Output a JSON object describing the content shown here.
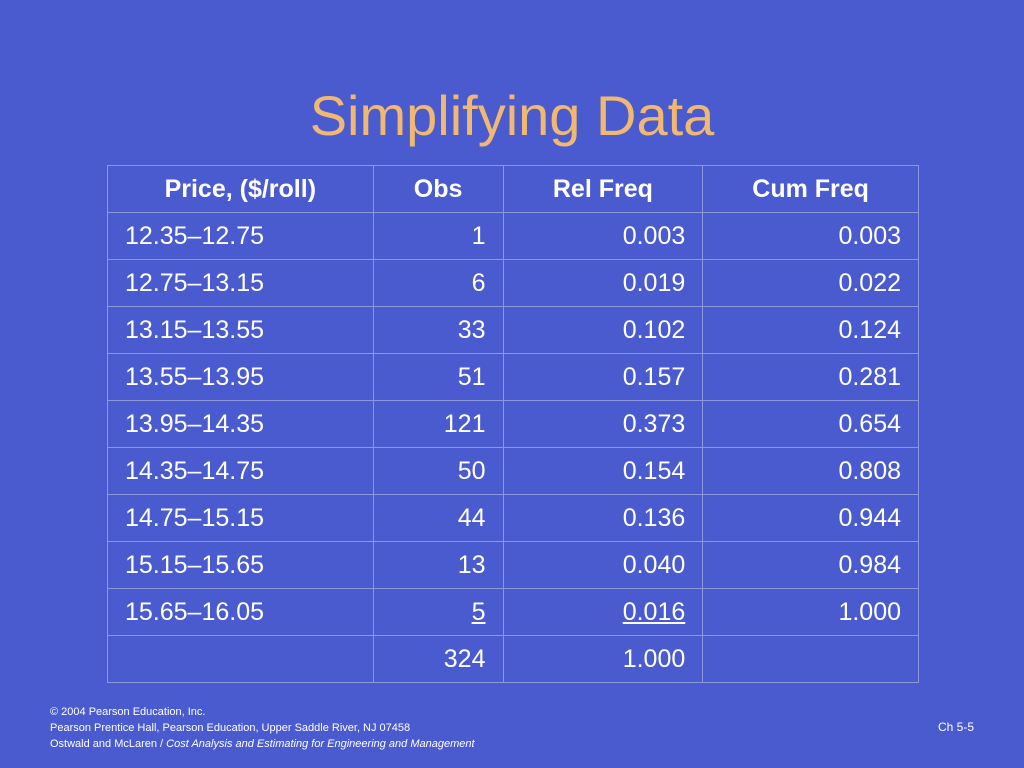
{
  "slide": {
    "title": "Simplifying Data",
    "table": {
      "headers": [
        "Price, ($/roll)",
        "Obs",
        "Rel Freq",
        "Cum Freq"
      ],
      "rows": [
        [
          "12.35–12.75",
          "1",
          "0.003",
          "0.003"
        ],
        [
          "12.75–13.15",
          "6",
          "0.019",
          "0.022"
        ],
        [
          "13.15–13.55",
          "33",
          "0.102",
          "0.124"
        ],
        [
          "13.55–13.95",
          "51",
          "0.157",
          "0.281"
        ],
        [
          "13.95–14.35",
          "121",
          "0.373",
          "0.654"
        ],
        [
          "14.35–14.75",
          "50",
          "0.154",
          "0.808"
        ],
        [
          "14.75–15.15",
          "44",
          "0.136",
          "0.944"
        ],
        [
          "15.15–15.65",
          "13",
          "0.040",
          "0.984"
        ],
        [
          "15.65–16.05",
          "5",
          "0.016",
          "1.000"
        ],
        [
          "",
          "324",
          "1.000",
          ""
        ]
      ]
    },
    "footer": {
      "copyright": "© 2004 Pearson Education, Inc.",
      "publisher": "Pearson Prentice Hall, Pearson Education, Upper Saddle River, NJ 07458",
      "authors": "Ostwald and McLaren / ",
      "book_title": "Cost Analysis and Estimating for Engineering and Management"
    },
    "page_number": "Ch 5-5"
  },
  "colors": {
    "background": "#4a5bd0",
    "title": "#f0b870",
    "text": "#ffffff",
    "grid": "#8d97dc"
  }
}
